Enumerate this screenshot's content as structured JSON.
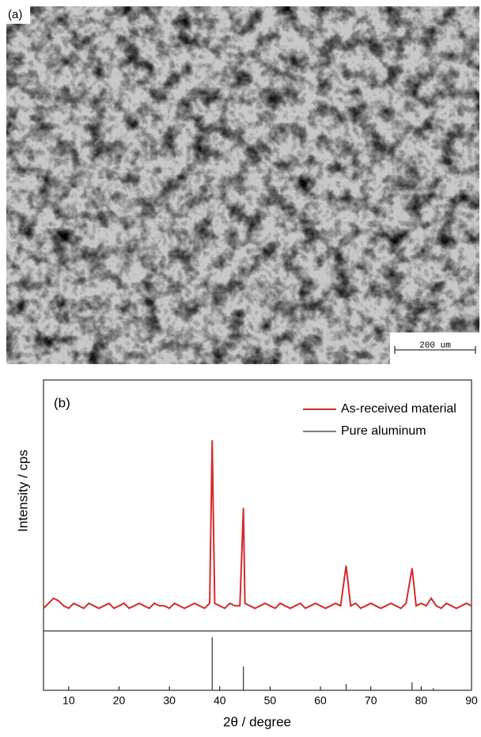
{
  "micrograph": {
    "label": "(a)",
    "scale_bar": "200 um"
  },
  "chart_data": {
    "type": "line",
    "panel_label": "(b)",
    "x_label": "2θ / degree",
    "y_label": "Intensity / cps",
    "xlim": [
      5,
      90
    ],
    "xticks": [
      10,
      20,
      30,
      40,
      50,
      60,
      70,
      80,
      90
    ],
    "ylim": [
      0,
      100
    ],
    "y2lim": [
      0,
      100
    ],
    "legend": "upper right",
    "series": [
      {
        "name": "As-received material",
        "color": "#d42a2a",
        "x": [
          5,
          6,
          7,
          8,
          9,
          10,
          11,
          12,
          13,
          14,
          15,
          16,
          17,
          18,
          19,
          20,
          21,
          22,
          23,
          24,
          25,
          26,
          27,
          28,
          29,
          30,
          31,
          32,
          33,
          34,
          35,
          36,
          37,
          38,
          38.5,
          39,
          40,
          41,
          42,
          43,
          44,
          44.7,
          45,
          46,
          47,
          48,
          49,
          50,
          51,
          52,
          53,
          54,
          55,
          56,
          57,
          58,
          59,
          60,
          61,
          62,
          63,
          64,
          65.1,
          66,
          67,
          68,
          69,
          70,
          71,
          72,
          73,
          74,
          75,
          76,
          77,
          78.2,
          79,
          80,
          81,
          82,
          83,
          84,
          85,
          86,
          87,
          88,
          89,
          90
        ],
        "values": [
          9,
          11,
          13,
          12,
          10,
          9,
          11,
          10,
          9,
          11,
          10,
          9,
          10,
          11,
          9,
          10,
          11,
          9,
          10,
          11,
          10,
          9,
          11,
          10,
          10,
          9,
          11,
          10,
          9,
          10,
          11,
          10,
          9,
          11,
          76,
          11,
          10,
          9,
          11,
          10,
          10,
          49,
          11,
          10,
          9,
          10,
          11,
          10,
          9,
          11,
          10,
          9,
          10,
          11,
          9,
          10,
          11,
          10,
          9,
          10,
          11,
          10,
          26,
          10,
          11,
          9,
          10,
          11,
          10,
          9,
          10,
          11,
          10,
          9,
          11,
          25,
          10,
          11,
          10,
          13,
          10,
          9,
          11,
          10,
          9,
          10,
          11,
          10
        ]
      },
      {
        "name": "Pure aluminum",
        "color": "#333333",
        "type": "stick",
        "axis": "y2",
        "x": [
          38.5,
          44.7,
          65.1,
          78.2,
          82.4
        ],
        "values": [
          100,
          45,
          12,
          15,
          4
        ]
      }
    ]
  }
}
